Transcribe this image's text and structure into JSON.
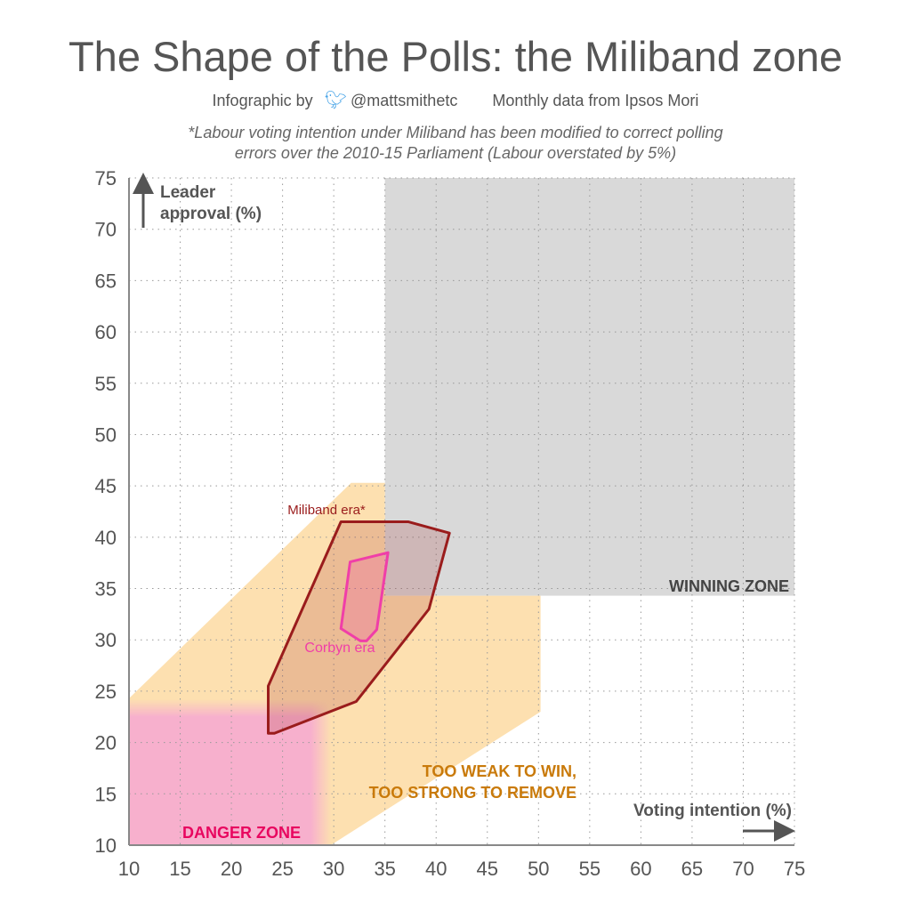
{
  "title": "The Shape of the Polls: the Miliband zone",
  "byline": {
    "prefix": "Infographic by",
    "handle": "@mattsmithetc",
    "source": "Monthly data from Ipsos Mori",
    "icon": "twitter-bird-icon"
  },
  "footnote": [
    "*Labour voting intention under Miliband has been modified to correct polling",
    "errors over the 2010-15 Parliament (Labour overstated by 5%)"
  ],
  "colors": {
    "winning": "#d9d9d9",
    "band": "#fde0b0",
    "danger": "#f7b0cd",
    "miliband": "#9a1c1c",
    "corbyn": "#f03ea8",
    "band_text": "#c97a0a",
    "danger_text": "#e8065f"
  },
  "chart_data": {
    "type": "area",
    "xlabel": "Voting intention (%)",
    "ylabel": "Leader approval (%)",
    "xlim": [
      10,
      75
    ],
    "ylim": [
      10,
      75
    ],
    "xticks": [
      10,
      15,
      20,
      25,
      30,
      35,
      40,
      45,
      50,
      55,
      60,
      65,
      70,
      75
    ],
    "yticks": [
      10,
      15,
      20,
      25,
      30,
      35,
      40,
      45,
      50,
      55,
      60,
      65,
      70,
      75
    ],
    "grid": true,
    "zones": [
      {
        "name": "WINNING ZONE",
        "points": [
          [
            35,
            34.3
          ],
          [
            75,
            34.3
          ],
          [
            75,
            75
          ],
          [
            35,
            75
          ]
        ]
      },
      {
        "name": "TOO WEAK TO WIN, TOO STRONG TO REMOVE",
        "lines": [
          "TOO WEAK TO WIN,",
          "TOO STRONG TO REMOVE"
        ],
        "points": [
          [
            10,
            10
          ],
          [
            10,
            24.3
          ],
          [
            31.7,
            45.3
          ],
          [
            35,
            45.3
          ],
          [
            35,
            34.3
          ],
          [
            50.2,
            34.3
          ],
          [
            50.2,
            23
          ],
          [
            29.7,
            10
          ]
        ]
      },
      {
        "name": "DANGER ZONE",
        "points": [
          [
            10,
            10
          ],
          [
            10,
            23.5
          ],
          [
            28,
            23.5
          ],
          [
            28,
            10
          ]
        ]
      }
    ],
    "series": [
      {
        "name": "Miliband era*",
        "points": [
          [
            23.6,
            20.9
          ],
          [
            23.6,
            25.5
          ],
          [
            30.7,
            41.5
          ],
          [
            37.3,
            41.5
          ],
          [
            41.3,
            40.4
          ],
          [
            39.3,
            33.0
          ],
          [
            32.2,
            24.0
          ],
          [
            24.2,
            20.9
          ]
        ]
      },
      {
        "name": "Corbyn era",
        "points": [
          [
            31.6,
            37.6
          ],
          [
            35.3,
            38.5
          ],
          [
            34.2,
            31.0
          ],
          [
            33.2,
            29.9
          ],
          [
            32.6,
            29.9
          ],
          [
            30.7,
            31.1
          ]
        ]
      }
    ]
  }
}
